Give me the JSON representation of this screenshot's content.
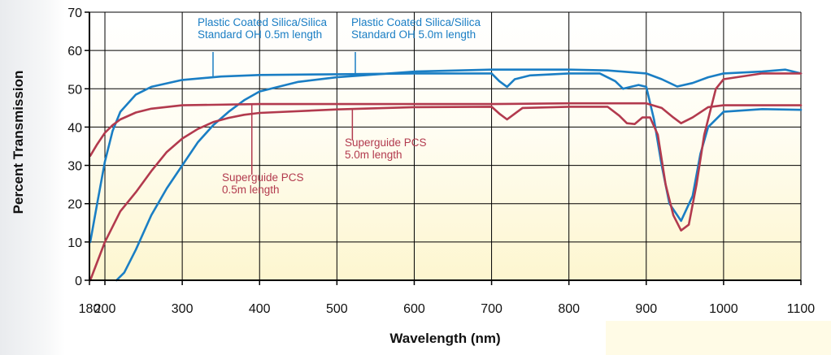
{
  "chart_data": {
    "type": "line",
    "xlabel": "Wavelength (nm)",
    "ylabel": "Percent Transmission",
    "xlim": [
      180,
      1100
    ],
    "ylim": [
      0,
      70
    ],
    "x_ticks": [
      180,
      200,
      300,
      400,
      500,
      600,
      700,
      800,
      900,
      1000,
      1100
    ],
    "y_ticks": [
      0,
      10,
      20,
      30,
      40,
      50,
      60,
      70
    ],
    "grid": true,
    "background": "vertical gradient white to pale yellow",
    "colors": {
      "blue": "#1a7ec4",
      "red": "#b23a4e",
      "grid": "#000000"
    },
    "series": [
      {
        "name": "Plastic Coated Silica/Silica Standard OH 0.5m length",
        "color": "#1a7ec4",
        "points": [
          [
            181,
            10
          ],
          [
            190,
            20
          ],
          [
            200,
            31
          ],
          [
            210,
            39
          ],
          [
            220,
            44
          ],
          [
            240,
            48.5
          ],
          [
            260,
            50.5
          ],
          [
            300,
            52.3
          ],
          [
            350,
            53.2
          ],
          [
            400,
            53.6
          ],
          [
            500,
            53.8
          ],
          [
            600,
            54
          ],
          [
            700,
            54
          ],
          [
            710,
            52
          ],
          [
            720,
            50.5
          ],
          [
            730,
            52.5
          ],
          [
            750,
            53.5
          ],
          [
            800,
            54
          ],
          [
            840,
            54
          ],
          [
            860,
            52
          ],
          [
            870,
            50
          ],
          [
            880,
            50.5
          ],
          [
            890,
            51
          ],
          [
            900,
            50.5
          ],
          [
            910,
            42
          ],
          [
            920,
            30
          ],
          [
            930,
            20
          ],
          [
            945,
            15.5
          ],
          [
            960,
            22
          ],
          [
            970,
            33
          ],
          [
            980,
            40
          ],
          [
            1000,
            44
          ],
          [
            1050,
            44.7
          ],
          [
            1100,
            44.5
          ]
        ]
      },
      {
        "name": "Plastic Coated Silica/Silica Standard OH 5.0m length",
        "color": "#1a7ec4",
        "points": [
          [
            215,
            0
          ],
          [
            225,
            2
          ],
          [
            240,
            8
          ],
          [
            260,
            17
          ],
          [
            280,
            24
          ],
          [
            300,
            30
          ],
          [
            320,
            36
          ],
          [
            340,
            40.5
          ],
          [
            360,
            44
          ],
          [
            380,
            47
          ],
          [
            400,
            49.3
          ],
          [
            450,
            51.8
          ],
          [
            500,
            53
          ],
          [
            600,
            54.5
          ],
          [
            700,
            55
          ],
          [
            800,
            55
          ],
          [
            850,
            54.8
          ],
          [
            900,
            54
          ],
          [
            920,
            52.5
          ],
          [
            940,
            50.6
          ],
          [
            960,
            51.5
          ],
          [
            980,
            53
          ],
          [
            1000,
            54
          ],
          [
            1050,
            54.5
          ],
          [
            1080,
            55
          ],
          [
            1100,
            54
          ]
        ]
      },
      {
        "name": "Superguide PCS 0.5m length",
        "color": "#b23a4e",
        "points": [
          [
            181,
            32.5
          ],
          [
            190,
            35.5
          ],
          [
            200,
            38.5
          ],
          [
            210,
            40.5
          ],
          [
            220,
            42
          ],
          [
            240,
            43.8
          ],
          [
            260,
            44.8
          ],
          [
            300,
            45.7
          ],
          [
            400,
            46
          ],
          [
            500,
            46
          ],
          [
            600,
            46
          ],
          [
            700,
            46
          ],
          [
            800,
            46.2
          ],
          [
            850,
            46.2
          ],
          [
            900,
            46.2
          ],
          [
            920,
            45
          ],
          [
            935,
            42.5
          ],
          [
            945,
            41
          ],
          [
            960,
            42.5
          ],
          [
            980,
            45.2
          ],
          [
            1000,
            45.7
          ],
          [
            1100,
            45.7
          ]
        ]
      },
      {
        "name": "Superguide PCS 5.0m length",
        "color": "#b23a4e",
        "points": [
          [
            181,
            0
          ],
          [
            200,
            10
          ],
          [
            220,
            18
          ],
          [
            240,
            23
          ],
          [
            260,
            28.5
          ],
          [
            280,
            33.5
          ],
          [
            300,
            37
          ],
          [
            320,
            39.5
          ],
          [
            340,
            41.3
          ],
          [
            360,
            42.4
          ],
          [
            380,
            43.2
          ],
          [
            400,
            43.7
          ],
          [
            500,
            44.6
          ],
          [
            600,
            45.2
          ],
          [
            700,
            45.3
          ],
          [
            710,
            43.5
          ],
          [
            720,
            42
          ],
          [
            730,
            43.5
          ],
          [
            740,
            45
          ],
          [
            800,
            45.3
          ],
          [
            850,
            45.3
          ],
          [
            865,
            43
          ],
          [
            875,
            41
          ],
          [
            885,
            40.8
          ],
          [
            895,
            42.5
          ],
          [
            905,
            42.5
          ],
          [
            915,
            38
          ],
          [
            925,
            25
          ],
          [
            935,
            17
          ],
          [
            945,
            13
          ],
          [
            955,
            14.5
          ],
          [
            965,
            25
          ],
          [
            975,
            38
          ],
          [
            990,
            50
          ],
          [
            1000,
            52.5
          ],
          [
            1050,
            54
          ],
          [
            1100,
            54
          ]
        ]
      }
    ],
    "annotations": [
      {
        "lines": [
          "Plastic Coated Silica/Silica",
          "Standard OH 0.5m length"
        ],
        "color": "#1a7ec4",
        "point_to": [
          340,
          53.2
        ]
      },
      {
        "lines": [
          "Plastic Coated Silica/Silica",
          "Standard OH 5.0m length"
        ],
        "color": "#1a7ec4",
        "point_to": [
          520,
          53.3
        ]
      },
      {
        "lines": [
          "Superguide PCS",
          "0.5m length"
        ],
        "color": "#b23a4e",
        "point_to": [
          390,
          46
        ]
      },
      {
        "lines": [
          "Superguide PCS",
          "5.0m length"
        ],
        "color": "#b23a4e",
        "point_to": [
          520,
          44.7
        ]
      }
    ]
  }
}
